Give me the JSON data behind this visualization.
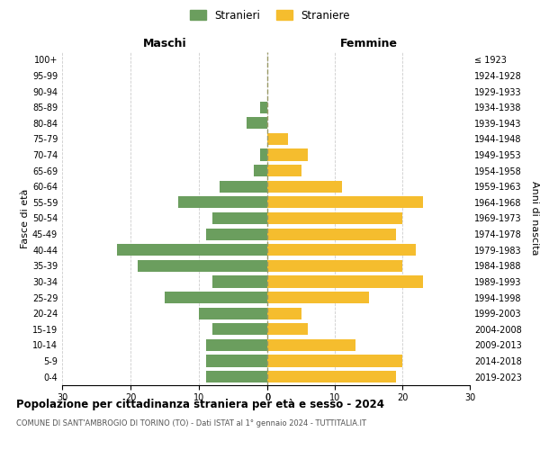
{
  "age_groups": [
    "0-4",
    "5-9",
    "10-14",
    "15-19",
    "20-24",
    "25-29",
    "30-34",
    "35-39",
    "40-44",
    "45-49",
    "50-54",
    "55-59",
    "60-64",
    "65-69",
    "70-74",
    "75-79",
    "80-84",
    "85-89",
    "90-94",
    "95-99",
    "100+"
  ],
  "birth_years": [
    "2019-2023",
    "2014-2018",
    "2009-2013",
    "2004-2008",
    "1999-2003",
    "1994-1998",
    "1989-1993",
    "1984-1988",
    "1979-1983",
    "1974-1978",
    "1969-1973",
    "1964-1968",
    "1959-1963",
    "1954-1958",
    "1949-1953",
    "1944-1948",
    "1939-1943",
    "1934-1938",
    "1929-1933",
    "1924-1928",
    "≤ 1923"
  ],
  "males": [
    9,
    9,
    9,
    8,
    10,
    15,
    8,
    19,
    22,
    9,
    8,
    13,
    7,
    2,
    1,
    0,
    3,
    1,
    0,
    0,
    0
  ],
  "females": [
    19,
    20,
    13,
    6,
    5,
    15,
    23,
    20,
    22,
    19,
    20,
    23,
    11,
    5,
    6,
    3,
    0,
    0,
    0,
    0,
    0
  ],
  "male_color": "#6b9e5e",
  "female_color": "#f5bd2e",
  "background_color": "#ffffff",
  "grid_color": "#cccccc",
  "title": "Popolazione per cittadinanza straniera per età e sesso - 2024",
  "subtitle": "COMUNE DI SANT'AMBROGIO DI TORINO (TO) - Dati ISTAT al 1° gennaio 2024 - TUTTITALIA.IT",
  "header_left": "Maschi",
  "header_right": "Femmine",
  "ylabel_left": "Fasce di età",
  "ylabel_right": "Anni di nascita",
  "legend_male": "Stranieri",
  "legend_female": "Straniere",
  "xlim": 30,
  "bar_height": 0.75
}
